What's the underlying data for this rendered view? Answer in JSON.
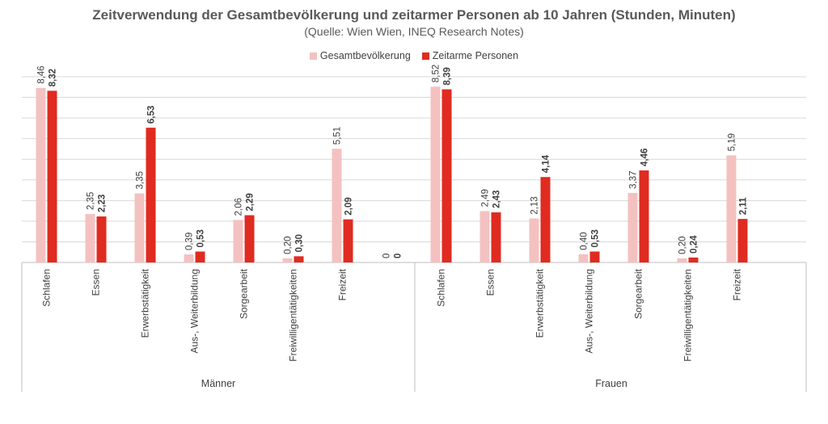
{
  "title": "Zeitverwendung der Gesamtbevölkerung und zeitarmer Personen ab 10 Jahren (Stunden, Minuten)",
  "subtitle": "(Quelle: Wien Wien, INEQ Research Notes)",
  "colors": {
    "gesamt": "#f4c1c1",
    "zeitarm": "#e02b20",
    "grid": "#d9d9d9",
    "axis": "#bfbfbf"
  },
  "chart_data": {
    "type": "bar",
    "title": "Zeitverwendung der Gesamtbevölkerung und zeitarmer Personen ab 10 Jahren (Stunden, Minuten)",
    "subtitle": "(Quelle: Wien Wien, INEQ Research Notes)",
    "ylim": [
      0,
      9.0
    ],
    "grid": true,
    "legend_position": "top",
    "groups": [
      {
        "label": "Männer",
        "categories": [
          "Schlafen",
          "Essen",
          "Erwerbstätigkeit",
          "Aus-, Weiterbildung",
          "Sorgearbeit",
          "Freiwilligentätigkeiten",
          "Freizeit",
          ""
        ]
      },
      {
        "label": "Frauen",
        "categories": [
          "Schlafen",
          "Essen",
          "Erwerbstätigkeit",
          "Aus-, Weiterbildung",
          "Sorgearbeit",
          "Freiwilligentätigkeiten",
          "Freizeit"
        ]
      }
    ],
    "series": [
      {
        "name": "Gesamtbevölkerung",
        "values": [
          8.46,
          2.35,
          3.35,
          0.39,
          2.06,
          0.2,
          5.51,
          0,
          8.52,
          2.49,
          2.13,
          0.4,
          3.37,
          0.2,
          5.19
        ],
        "labels": [
          "8,46",
          "2,35",
          "3,35",
          "0,39",
          "2,06",
          "0,20",
          "5,51",
          "0",
          "8,52",
          "2,49",
          "2,13",
          "0,40",
          "3,37",
          "0,20",
          "5,19"
        ]
      },
      {
        "name": "Zeitarme Personen",
        "values": [
          8.32,
          2.23,
          6.53,
          0.53,
          2.29,
          0.3,
          2.09,
          0,
          8.39,
          2.43,
          4.14,
          0.53,
          4.46,
          0.24,
          2.11
        ],
        "labels": [
          "8,32",
          "2,23",
          "6,53",
          "0,53",
          "2,29",
          "0,30",
          "2,09",
          "0",
          "8,39",
          "2,43",
          "4,14",
          "0,53",
          "4,46",
          "0,24",
          "2,11"
        ]
      }
    ]
  }
}
